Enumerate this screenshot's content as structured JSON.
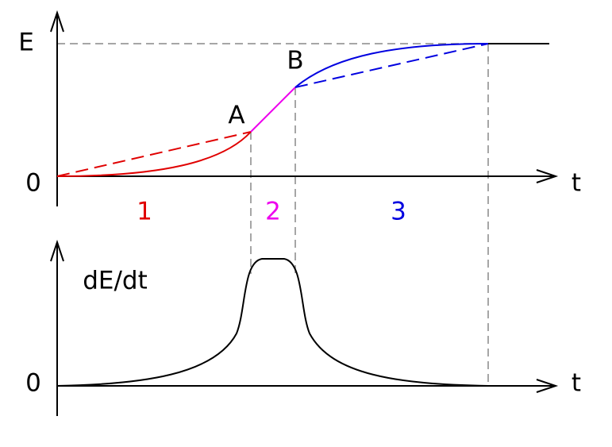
{
  "top_plot": {
    "y_label": "E",
    "origin": "0",
    "x_label": "t",
    "point_a": "A",
    "point_b": "B",
    "regions": [
      "1",
      "2",
      "3"
    ]
  },
  "bottom_plot": {
    "y_label": "dE/dt",
    "origin": "0",
    "x_label": "t"
  }
}
